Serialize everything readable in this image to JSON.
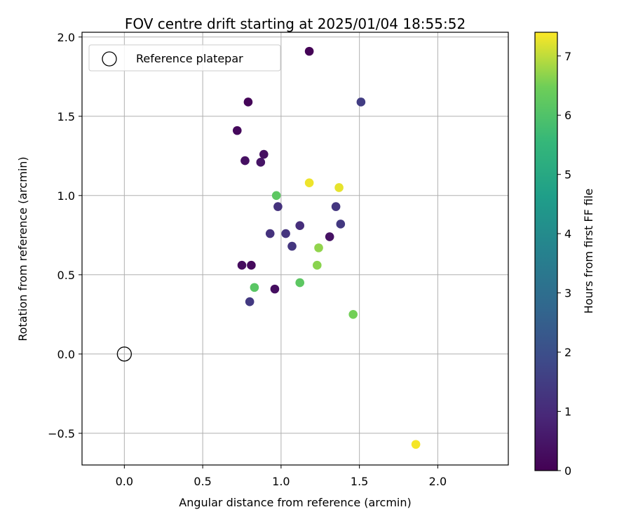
{
  "chart_data": {
    "type": "scatter",
    "title": "FOV centre drift starting at 2025/01/04 18:55:52",
    "xlabel": "Angular distance from reference (arcmin)",
    "ylabel": "Rotation from reference (arcmin)",
    "xlim": [
      -0.27,
      2.45
    ],
    "ylim": [
      -0.7,
      2.03
    ],
    "x_ticks": [
      0.0,
      0.5,
      1.0,
      1.5,
      2.0
    ],
    "x_tick_labels": [
      "0.0",
      "0.5",
      "1.0",
      "1.5",
      "2.0"
    ],
    "y_ticks": [
      -0.5,
      0.0,
      0.5,
      1.0,
      1.5,
      2.0
    ],
    "y_tick_labels": [
      "−0.5",
      "0.0",
      "0.5",
      "1.0",
      "1.5",
      "2.0"
    ],
    "grid": true,
    "legend": {
      "position": "top-left",
      "entries": [
        "Reference platepar"
      ]
    },
    "reference_point": {
      "x": 0.0,
      "y": 0.0,
      "label": "Reference platepar"
    },
    "colorbar": {
      "label": "Hours from first FF file",
      "colormap": "viridis",
      "range": [
        0,
        7.4
      ],
      "ticks": [
        0,
        1,
        2,
        3,
        4,
        5,
        6,
        7
      ],
      "tick_labels": [
        "0",
        "1",
        "2",
        "3",
        "4",
        "5",
        "6",
        "7"
      ]
    },
    "points": [
      {
        "x": 1.18,
        "y": 1.91,
        "hours": 0.05
      },
      {
        "x": 0.79,
        "y": 1.59,
        "hours": 0.1
      },
      {
        "x": 0.72,
        "y": 1.41,
        "hours": 0.2
      },
      {
        "x": 0.77,
        "y": 1.22,
        "hours": 0.35
      },
      {
        "x": 0.89,
        "y": 1.26,
        "hours": 0.3
      },
      {
        "x": 0.87,
        "y": 1.21,
        "hours": 0.45
      },
      {
        "x": 0.75,
        "y": 0.56,
        "hours": 0.25
      },
      {
        "x": 0.81,
        "y": 0.56,
        "hours": 0.2
      },
      {
        "x": 0.96,
        "y": 0.41,
        "hours": 0.3
      },
      {
        "x": 1.31,
        "y": 0.74,
        "hours": 0.4
      },
      {
        "x": 0.93,
        "y": 0.76,
        "hours": 1.2
      },
      {
        "x": 0.98,
        "y": 0.93,
        "hours": 1.2
      },
      {
        "x": 1.03,
        "y": 0.76,
        "hours": 1.25
      },
      {
        "x": 1.07,
        "y": 0.68,
        "hours": 1.3
      },
      {
        "x": 1.12,
        "y": 0.81,
        "hours": 1.1
      },
      {
        "x": 1.35,
        "y": 0.93,
        "hours": 1.3
      },
      {
        "x": 1.38,
        "y": 0.82,
        "hours": 1.35
      },
      {
        "x": 0.8,
        "y": 0.33,
        "hours": 1.4
      },
      {
        "x": 1.51,
        "y": 1.59,
        "hours": 1.5
      },
      {
        "x": 0.97,
        "y": 1.0,
        "hours": 6.2
      },
      {
        "x": 0.83,
        "y": 0.42,
        "hours": 6.15
      },
      {
        "x": 1.12,
        "y": 0.45,
        "hours": 6.2
      },
      {
        "x": 1.24,
        "y": 0.67,
        "hours": 6.7
      },
      {
        "x": 1.23,
        "y": 0.56,
        "hours": 6.65
      },
      {
        "x": 1.46,
        "y": 0.25,
        "hours": 6.5
      },
      {
        "x": 1.18,
        "y": 1.08,
        "hours": 7.3
      },
      {
        "x": 1.37,
        "y": 1.05,
        "hours": 7.25
      },
      {
        "x": 1.86,
        "y": -0.57,
        "hours": 7.35
      }
    ]
  }
}
